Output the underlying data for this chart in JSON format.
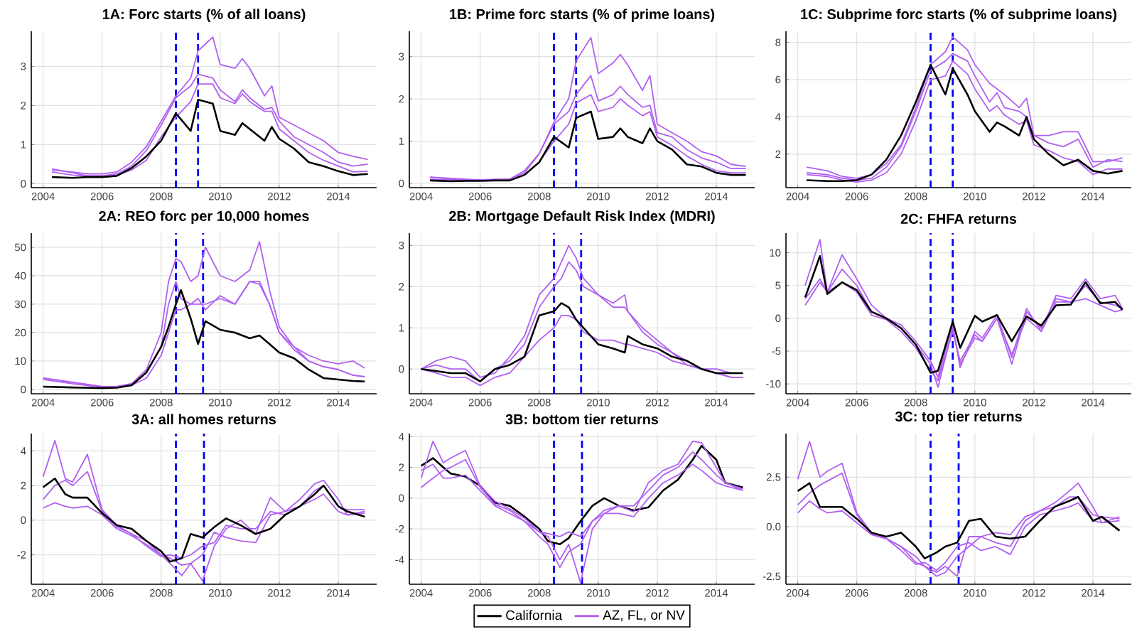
{
  "chart_data": [
    {
      "type": "line",
      "title": "1A: Forc starts (% of all loans)",
      "grid": true,
      "xlim": [
        2003.6,
        2015.3
      ],
      "ylim": [
        -0.1,
        3.9
      ],
      "xticks": [
        2004,
        2006,
        2008,
        2010,
        2012,
        2014
      ],
      "yticks": [
        0,
        1,
        2,
        3
      ],
      "ref_lines": [
        {
          "axis": "x",
          "value": 2008.5,
          "color": "#0000ff",
          "line_style": "dashed"
        },
        {
          "axis": "x",
          "value": 2009.25,
          "color": "#0000ff",
          "line_style": "dashed"
        }
      ],
      "x": [
        2004.3,
        2005,
        2005.5,
        2006,
        2006.5,
        2007,
        2007.5,
        2008,
        2008.5,
        2009,
        2009.25,
        2009.75,
        2010,
        2010.5,
        2010.75,
        2011,
        2011.5,
        2011.75,
        2012,
        2012.5,
        2013,
        2013.5,
        2014,
        2014.5,
        2015
      ],
      "series": [
        {
          "color": "#000000",
          "values": [
            0.17,
            0.15,
            0.17,
            0.17,
            0.2,
            0.4,
            0.7,
            1.1,
            1.8,
            1.35,
            2.15,
            2.05,
            1.35,
            1.25,
            1.55,
            1.4,
            1.1,
            1.45,
            1.15,
            0.9,
            0.55,
            0.45,
            0.32,
            0.22,
            0.25
          ]
        },
        {
          "color": "#b060f0",
          "values": [
            0.35,
            0.3,
            0.25,
            0.25,
            0.3,
            0.55,
            0.95,
            1.6,
            2.25,
            2.7,
            3.4,
            3.75,
            3.05,
            2.95,
            3.2,
            2.95,
            2.25,
            2.5,
            1.7,
            1.5,
            1.3,
            1.1,
            0.8,
            0.7,
            0.62
          ]
        },
        {
          "color": "#b060f0",
          "values": [
            0.38,
            0.28,
            0.2,
            0.2,
            0.25,
            0.45,
            0.85,
            1.5,
            2.2,
            2.5,
            2.8,
            2.7,
            2.4,
            2.1,
            2.4,
            2.2,
            1.9,
            1.95,
            1.6,
            1.2,
            1.0,
            0.8,
            0.55,
            0.45,
            0.5
          ]
        },
        {
          "color": "#b060f0",
          "values": [
            0.3,
            0.22,
            0.2,
            0.2,
            0.22,
            0.35,
            0.6,
            1.2,
            1.7,
            2.1,
            2.55,
            2.55,
            2.2,
            2.05,
            2.3,
            2.1,
            1.85,
            1.85,
            1.4,
            1.1,
            0.8,
            0.6,
            0.45,
            0.3,
            0.32
          ]
        }
      ]
    },
    {
      "type": "line",
      "title": "1B: Prime forc starts (% of prime loans)",
      "grid": true,
      "xlim": [
        2003.6,
        2015.3
      ],
      "ylim": [
        -0.1,
        3.6
      ],
      "xticks": [
        2004,
        2006,
        2008,
        2010,
        2012,
        2014
      ],
      "yticks": [
        0,
        1,
        2,
        3
      ],
      "ref_lines": [
        {
          "axis": "x",
          "value": 2008.5,
          "color": "#0000ff",
          "line_style": "dashed"
        },
        {
          "axis": "x",
          "value": 2009.25,
          "color": "#0000ff",
          "line_style": "dashed"
        }
      ],
      "x": [
        2004.3,
        2005,
        2005.5,
        2006,
        2006.5,
        2007,
        2007.5,
        2008,
        2008.5,
        2009,
        2009.25,
        2009.75,
        2010,
        2010.5,
        2010.75,
        2011,
        2011.5,
        2011.75,
        2012,
        2012.5,
        2013,
        2013.5,
        2014,
        2014.5,
        2015
      ],
      "series": [
        {
          "color": "#000000",
          "values": [
            0.07,
            0.05,
            0.06,
            0.06,
            0.07,
            0.07,
            0.2,
            0.5,
            1.1,
            0.85,
            1.55,
            1.7,
            1.05,
            1.1,
            1.3,
            1.1,
            0.95,
            1.3,
            1.0,
            0.8,
            0.45,
            0.4,
            0.25,
            0.2,
            0.2
          ]
        },
        {
          "color": "#b060f0",
          "values": [
            0.15,
            0.12,
            0.1,
            0.08,
            0.1,
            0.1,
            0.3,
            0.7,
            1.45,
            2.0,
            2.9,
            3.45,
            2.6,
            2.85,
            3.05,
            2.8,
            2.2,
            2.55,
            1.4,
            1.2,
            1.0,
            0.75,
            0.65,
            0.45,
            0.4
          ]
        },
        {
          "color": "#b060f0",
          "values": [
            0.15,
            0.1,
            0.08,
            0.08,
            0.08,
            0.1,
            0.25,
            0.7,
            1.4,
            1.7,
            2.1,
            2.55,
            1.95,
            2.1,
            2.3,
            2.1,
            1.8,
            1.85,
            1.2,
            1.1,
            0.8,
            0.6,
            0.5,
            0.35,
            0.35
          ]
        },
        {
          "color": "#b060f0",
          "values": [
            0.1,
            0.08,
            0.07,
            0.07,
            0.07,
            0.08,
            0.2,
            0.5,
            1.0,
            1.4,
            1.9,
            2.1,
            1.7,
            1.8,
            2.0,
            1.85,
            1.6,
            1.7,
            1.1,
            0.9,
            0.65,
            0.45,
            0.3,
            0.25,
            0.25
          ]
        }
      ]
    },
    {
      "type": "line",
      "title": "1C: Subprime forc starts (% of subprime loans)",
      "grid": true,
      "xlim": [
        2003.6,
        2015.3
      ],
      "ylim": [
        0.2,
        8.6
      ],
      "xticks": [
        2004,
        2006,
        2008,
        2010,
        2012,
        2014
      ],
      "yticks": [
        2,
        4,
        6,
        8
      ],
      "ref_lines": [
        {
          "axis": "x",
          "value": 2008.5,
          "color": "#0000ff",
          "line_style": "dashed"
        },
        {
          "axis": "x",
          "value": 2009.25,
          "color": "#0000ff",
          "line_style": "dashed"
        }
      ],
      "x": [
        2004.3,
        2005,
        2005.5,
        2006,
        2006.5,
        2007,
        2007.5,
        2008,
        2008.5,
        2009,
        2009.25,
        2009.75,
        2010,
        2010.5,
        2010.75,
        2011,
        2011.5,
        2011.75,
        2012,
        2012.5,
        2013,
        2013.5,
        2014,
        2014.5,
        2015
      ],
      "series": [
        {
          "color": "#000000",
          "values": [
            0.6,
            0.55,
            0.55,
            0.6,
            0.9,
            1.7,
            3.0,
            4.8,
            6.8,
            5.2,
            6.6,
            5.2,
            4.3,
            3.2,
            3.7,
            3.5,
            3.0,
            4.0,
            2.8,
            2.0,
            1.4,
            1.7,
            1.1,
            0.95,
            1.1
          ]
        },
        {
          "color": "#b060f0",
          "values": [
            1.3,
            1.1,
            0.8,
            0.7,
            0.9,
            1.5,
            2.5,
            4.5,
            6.8,
            7.5,
            8.3,
            7.6,
            6.8,
            5.8,
            5.5,
            5.2,
            4.5,
            5.0,
            3.0,
            3.0,
            3.2,
            3.2,
            1.6,
            1.6,
            1.8
          ]
        },
        {
          "color": "#b060f0",
          "values": [
            1.0,
            0.9,
            0.7,
            0.6,
            0.7,
            1.3,
            2.4,
            4.3,
            6.5,
            7.0,
            7.4,
            7.0,
            6.2,
            4.8,
            5.3,
            4.5,
            4.3,
            4.0,
            3.0,
            2.6,
            2.4,
            2.8,
            1.3,
            1.7,
            1.6
          ]
        },
        {
          "color": "#b060f0",
          "values": [
            0.9,
            0.8,
            0.6,
            0.5,
            0.6,
            1.0,
            2.0,
            3.8,
            6.0,
            6.2,
            7.0,
            6.3,
            5.5,
            4.3,
            4.6,
            4.1,
            3.6,
            3.8,
            2.5,
            2.2,
            1.8,
            1.6,
            0.9,
            1.2,
            1.2
          ]
        }
      ]
    },
    {
      "type": "line",
      "title": "2A: REO forc per 10,000 homes",
      "grid": true,
      "xlim": [
        2003.6,
        2015.3
      ],
      "ylim": [
        -1.5,
        55
      ],
      "xticks": [
        2004,
        2006,
        2008,
        2010,
        2012,
        2014
      ],
      "yticks": [
        0,
        10,
        20,
        30,
        40,
        50
      ],
      "ref_lines": [
        {
          "axis": "x",
          "value": 2008.5,
          "color": "#0000ff",
          "line_style": "dashed"
        },
        {
          "axis": "x",
          "value": 2009.42,
          "color": "#0000ff",
          "line_style": "dashed"
        }
      ],
      "x": [
        2004,
        2005,
        2006,
        2006.5,
        2007,
        2007.5,
        2008,
        2008.25,
        2008.5,
        2008.67,
        2009,
        2009.25,
        2009.5,
        2010,
        2010.5,
        2011,
        2011.33,
        2011.67,
        2012,
        2012.5,
        2013,
        2013.5,
        2014,
        2014.5,
        2014.9
      ],
      "series": [
        {
          "color": "#000000",
          "values": [
            1,
            0.7,
            0.5,
            0.6,
            1.5,
            6,
            15,
            22,
            30,
            35,
            25,
            16,
            24,
            21,
            20,
            18,
            19,
            16,
            13,
            11,
            7,
            4,
            3.5,
            3,
            2.8
          ]
        },
        {
          "color": "#b060f0",
          "values": [
            4,
            2.5,
            1,
            1,
            2,
            7,
            20,
            38,
            46,
            45,
            38,
            40,
            50,
            40,
            38,
            42,
            52,
            35,
            22,
            15,
            12,
            10,
            9,
            10,
            7.5
          ]
        },
        {
          "color": "#b060f0",
          "values": [
            4,
            2.5,
            1,
            1,
            2,
            6,
            15,
            30,
            38,
            32,
            30,
            32,
            28,
            33,
            30,
            38,
            38,
            30,
            20,
            15,
            10,
            8,
            7,
            5,
            4.5
          ]
        },
        {
          "color": "#b060f0",
          "values": [
            3.5,
            2,
            0.8,
            0.8,
            1.5,
            4,
            12,
            20,
            28,
            28,
            30,
            30,
            30,
            32,
            30,
            38,
            37,
            30,
            20,
            14,
            10,
            8,
            7,
            5,
            4.5
          ]
        }
      ]
    },
    {
      "type": "line",
      "title": "2B: Mortgage Default Risk Index (MDRI)",
      "grid": true,
      "xlim": [
        2003.6,
        2015.3
      ],
      "ylim": [
        -0.6,
        3.3
      ],
      "xticks": [
        2004,
        2006,
        2008,
        2010,
        2012,
        2014
      ],
      "yticks": [
        0,
        1,
        2,
        3
      ],
      "ref_lines": [
        {
          "axis": "x",
          "value": 2008.5,
          "color": "#0000ff",
          "line_style": "dashed"
        },
        {
          "axis": "x",
          "value": 2009.42,
          "color": "#0000ff",
          "line_style": "dashed"
        }
      ],
      "x": [
        2004,
        2004.5,
        2005,
        2005.5,
        2006,
        2006.5,
        2007,
        2007.5,
        2008,
        2008.5,
        2008.75,
        2009,
        2009.25,
        2009.5,
        2010,
        2010.5,
        2010.9,
        2011,
        2011.5,
        2012,
        2012.5,
        2013,
        2013.5,
        2014,
        2014.5,
        2014.9
      ],
      "series": [
        {
          "color": "#000000",
          "values": [
            0,
            -0.05,
            -0.1,
            -0.1,
            -0.3,
            0,
            0.1,
            0.3,
            1.3,
            1.4,
            1.6,
            1.5,
            1.2,
            1.0,
            0.6,
            0.5,
            0.4,
            0.8,
            0.6,
            0.5,
            0.3,
            0.2,
            0,
            -0.1,
            -0.1,
            -0.1
          ]
        },
        {
          "color": "#b060f0",
          "values": [
            0,
            0.2,
            0.3,
            0.2,
            -0.2,
            -0.1,
            0.3,
            0.8,
            1.8,
            2.2,
            2.6,
            3.0,
            2.7,
            2.2,
            1.8,
            1.6,
            1.8,
            1.4,
            0.9,
            0.6,
            0.4,
            0.2,
            0,
            -0.1,
            -0.2,
            -0.2
          ]
        },
        {
          "color": "#b060f0",
          "values": [
            0,
            0.1,
            0.0,
            0.0,
            -0.3,
            0,
            0.2,
            0.6,
            1.5,
            2.0,
            2.2,
            2.6,
            2.4,
            2.0,
            1.8,
            1.5,
            1.5,
            1.4,
            1.0,
            0.7,
            0.4,
            0.1,
            0,
            -0.1,
            -0.2,
            -0.2
          ]
        },
        {
          "color": "#b060f0",
          "values": [
            0,
            -0.1,
            -0.2,
            -0.2,
            -0.4,
            -0.2,
            -0.1,
            0.3,
            0.7,
            1.0,
            1.3,
            1.3,
            1.2,
            0.9,
            0.7,
            0.7,
            0.6,
            0.6,
            0.5,
            0.4,
            0.2,
            0.1,
            0,
            0,
            -0.1,
            -0.1
          ]
        }
      ]
    },
    {
      "type": "line",
      "title": "2C: FHFA returns",
      "grid": true,
      "xlim": [
        2003.6,
        2015.3
      ],
      "ylim": [
        -11.5,
        13
      ],
      "xticks": [
        2004,
        2006,
        2008,
        2010,
        2012,
        2014
      ],
      "yticks": [
        -10,
        -5,
        0,
        5,
        10
      ],
      "ref_lines": [
        {
          "axis": "x",
          "value": 2008.5,
          "color": "#0000ff",
          "line_style": "dashed"
        },
        {
          "axis": "x",
          "value": 2009.25,
          "color": "#0000ff",
          "line_style": "dashed"
        }
      ],
      "x": [
        2004.25,
        2004.75,
        2005,
        2005.5,
        2006,
        2006.5,
        2007,
        2007.5,
        2008,
        2008.5,
        2008.75,
        2009.25,
        2009.5,
        2010,
        2010.25,
        2010.75,
        2011.25,
        2011.75,
        2012.25,
        2012.75,
        2013.25,
        2013.75,
        2014.25,
        2014.75,
        2015
      ],
      "series": [
        {
          "color": "#000000",
          "values": [
            3.2,
            9.5,
            3.7,
            5.5,
            4.3,
            1.0,
            0,
            -1.5,
            -4,
            -8.3,
            -8,
            -0.5,
            -4.5,
            0.4,
            -0.5,
            0.5,
            -3.5,
            0.3,
            -1.1,
            2,
            2.1,
            5.5,
            2.3,
            2.5,
            1.3
          ]
        },
        {
          "color": "#b060f0",
          "values": [
            5,
            12,
            4,
            9.7,
            6,
            2,
            0,
            -1,
            -3.5,
            -6.5,
            -9,
            -1,
            -7.5,
            -2,
            -3,
            0.5,
            -6,
            1.5,
            -2,
            3.5,
            3,
            6,
            3,
            3.5,
            1.5
          ]
        },
        {
          "color": "#b060f0",
          "values": [
            3,
            6,
            4,
            7.5,
            5,
            1,
            0,
            -1.5,
            -4,
            -7,
            -10.5,
            -1.5,
            -7,
            -3,
            -3.5,
            0,
            -7,
            1,
            -1.5,
            3,
            2.5,
            5,
            2.5,
            2,
            1.5
          ]
        },
        {
          "color": "#b060f0",
          "values": [
            2,
            5.5,
            4,
            5.5,
            4,
            0.5,
            -0.2,
            -2,
            -4.5,
            -8,
            -9.5,
            -2,
            -6.5,
            -2.5,
            -3.5,
            0,
            -5.5,
            0,
            -2,
            2.5,
            2.5,
            3,
            2,
            1,
            1.3
          ]
        }
      ]
    },
    {
      "type": "line",
      "title": "3A: all homes returns",
      "grid": true,
      "xlim": [
        2003.6,
        2015.3
      ],
      "ylim": [
        -3.7,
        5
      ],
      "xticks": [
        2004,
        2006,
        2008,
        2010,
        2012,
        2014
      ],
      "yticks": [
        -2,
        0,
        2,
        4
      ],
      "ref_lines": [
        {
          "axis": "x",
          "value": 2008.5,
          "color": "#0000ff",
          "line_style": "dashed"
        },
        {
          "axis": "x",
          "value": 2009.45,
          "color": "#0000ff",
          "line_style": "dashed"
        }
      ],
      "x": [
        2004,
        2004.4,
        2004.75,
        2005,
        2005.5,
        2006,
        2006.5,
        2007,
        2007.5,
        2008,
        2008.3,
        2008.7,
        2009,
        2009.4,
        2009.8,
        2010.2,
        2010.7,
        2011.2,
        2011.7,
        2012.2,
        2012.7,
        2013.2,
        2013.5,
        2014,
        2014.3,
        2014.9
      ],
      "series": [
        {
          "color": "#000000",
          "values": [
            1.9,
            2.4,
            1.5,
            1.3,
            1.3,
            0.4,
            -0.3,
            -0.5,
            -1.2,
            -1.8,
            -2.4,
            -2.2,
            -0.8,
            -1.0,
            -0.4,
            0.1,
            -0.3,
            -0.8,
            -0.5,
            0.3,
            0.8,
            1.5,
            2.0,
            0.8,
            0.5,
            0.2
          ]
        },
        {
          "color": "#b060f0",
          "values": [
            2.5,
            4.6,
            2.4,
            2.2,
            3.8,
            0.6,
            -0.3,
            -0.8,
            -1.2,
            -2.0,
            -2.2,
            -2.6,
            -2.5,
            -3.5,
            -1.5,
            -0.5,
            0.0,
            -0.8,
            1.3,
            0.5,
            1.2,
            2.1,
            2.3,
            1.2,
            0.3,
            0.5
          ]
        },
        {
          "color": "#b060f0",
          "values": [
            1.2,
            2.0,
            2.3,
            2.0,
            2.8,
            0.5,
            -0.4,
            -0.8,
            -1.5,
            -2.1,
            -2.0,
            -2.2,
            -2.0,
            -1.5,
            -1.3,
            -0.3,
            -0.5,
            -0.5,
            0.5,
            0.3,
            0.8,
            1.7,
            2.0,
            0.8,
            0.6,
            0.6
          ]
        },
        {
          "color": "#b060f0",
          "values": [
            0.7,
            1.0,
            0.8,
            0.7,
            0.8,
            0.3,
            -0.5,
            -0.9,
            -1.4,
            -2.0,
            -2.5,
            -3.2,
            -2.5,
            -2.0,
            -0.7,
            -1.0,
            -1.2,
            -1.3,
            0.3,
            0.5,
            0.8,
            1.2,
            1.5,
            0.5,
            0.3,
            0.4
          ]
        }
      ]
    },
    {
      "type": "line",
      "title": "3B: bottom tier returns",
      "grid": true,
      "legend": "bottom",
      "xlim": [
        2003.6,
        2015.3
      ],
      "ylim": [
        -5.6,
        4.2
      ],
      "xticks": [
        2004,
        2006,
        2008,
        2010,
        2012,
        2014
      ],
      "yticks": [
        -4,
        -2,
        0,
        2,
        4
      ],
      "ref_lines": [
        {
          "axis": "x",
          "value": 2008.5,
          "color": "#0000ff",
          "line_style": "dashed"
        },
        {
          "axis": "x",
          "value": 2009.45,
          "color": "#0000ff",
          "line_style": "dashed"
        }
      ],
      "x": [
        2004,
        2004.4,
        2004.75,
        2005,
        2005.5,
        2006,
        2006.5,
        2007,
        2007.5,
        2008,
        2008.3,
        2008.7,
        2009,
        2009.4,
        2009.8,
        2010.2,
        2010.7,
        2011.2,
        2011.7,
        2012.2,
        2012.7,
        2013.2,
        2013.5,
        2014,
        2014.3,
        2014.9
      ],
      "series": [
        {
          "name": "California",
          "color": "#000000",
          "values": [
            2.1,
            2.6,
            2.0,
            1.6,
            1.4,
            0.8,
            -0.3,
            -0.5,
            -1.2,
            -2.0,
            -2.8,
            -3.0,
            -2.6,
            -1.5,
            -0.5,
            0.0,
            -0.5,
            -0.8,
            -0.6,
            0.5,
            1.2,
            2.5,
            3.4,
            2.5,
            1.0,
            0.7
          ]
        },
        {
          "name": "AZ, FL, or NV",
          "color": "#b060f0",
          "values": [
            1.3,
            3.7,
            2.3,
            2.6,
            3.1,
            0.8,
            -0.2,
            -0.7,
            -1.3,
            -2.2,
            -2.5,
            -4.0,
            -3.0,
            -5.5,
            -2.0,
            -1.0,
            -0.5,
            -0.9,
            1.0,
            1.8,
            2.2,
            3.7,
            3.6,
            2.0,
            1.0,
            0.6
          ]
        },
        {
          "color": "#b060f0",
          "values": [
            0.7,
            1.3,
            1.8,
            2.0,
            2.5,
            0.7,
            -0.4,
            -0.8,
            -1.5,
            -2.2,
            -2.3,
            -2.5,
            -2.2,
            -2.5,
            -1.5,
            -0.8,
            -0.5,
            -0.5,
            0.5,
            1.5,
            2.0,
            3.0,
            2.5,
            1.5,
            1.0,
            0.5
          ]
        },
        {
          "color": "#b060f0",
          "values": [
            1.8,
            2.2,
            1.3,
            1.3,
            1.5,
            0.5,
            -0.5,
            -1.0,
            -1.5,
            -2.5,
            -3.0,
            -4.5,
            -3.5,
            -3.0,
            -1.5,
            -1.0,
            -1.0,
            -1.2,
            0.0,
            1.0,
            1.5,
            2.2,
            1.8,
            1.0,
            0.8,
            0.5
          ]
        }
      ]
    },
    {
      "type": "line",
      "title": "3C: top tier returns",
      "grid": true,
      "xlim": [
        2003.6,
        2015.3
      ],
      "ylim": [
        -2.9,
        4.7
      ],
      "xticks": [
        2004,
        2006,
        2008,
        2010,
        2012,
        2014
      ],
      "yticks": [
        -2.5,
        {
          "value": 0,
          "label": "0.0"
        },
        2.5
      ],
      "ref_lines": [
        {
          "axis": "x",
          "value": 2008.5,
          "color": "#0000ff",
          "line_style": "dashed"
        },
        {
          "axis": "x",
          "value": 2009.45,
          "color": "#0000ff",
          "line_style": "dashed"
        }
      ],
      "x": [
        2004,
        2004.4,
        2004.75,
        2005,
        2005.5,
        2006,
        2006.5,
        2007,
        2007.5,
        2008,
        2008.3,
        2008.7,
        2009,
        2009.4,
        2009.8,
        2010.2,
        2010.7,
        2011.2,
        2011.7,
        2012.2,
        2012.7,
        2013.2,
        2013.5,
        2014,
        2014.3,
        2014.9
      ],
      "series": [
        {
          "color": "#000000",
          "values": [
            1.8,
            2.2,
            1.0,
            1.0,
            1.0,
            0.4,
            -0.3,
            -0.5,
            -0.3,
            -1.0,
            -1.6,
            -1.3,
            -1.0,
            -0.8,
            0.3,
            0.4,
            -0.5,
            -0.6,
            -0.5,
            0.3,
            1.0,
            1.3,
            1.5,
            0.3,
            0.5,
            -0.2
          ]
        },
        {
          "color": "#b060f0",
          "values": [
            2.4,
            4.3,
            2.5,
            2.8,
            3.2,
            0.7,
            -0.3,
            -0.6,
            -1.0,
            -1.5,
            -2.0,
            -2.3,
            -2.0,
            -2.5,
            -0.5,
            -0.5,
            -0.3,
            -0.4,
            0.5,
            0.8,
            1.2,
            1.8,
            2.2,
            1.0,
            0.2,
            0.5
          ]
        },
        {
          "color": "#b060f0",
          "values": [
            1.1,
            1.7,
            2.1,
            2.3,
            2.7,
            0.6,
            -0.4,
            -0.6,
            -1.0,
            -1.8,
            -2.0,
            -2.5,
            -2.3,
            -1.5,
            -1.0,
            -0.5,
            -0.8,
            -1.0,
            0.3,
            0.8,
            1.0,
            1.5,
            1.5,
            0.6,
            0.5,
            0.4
          ]
        },
        {
          "color": "#b060f0",
          "values": [
            0.7,
            1.3,
            0.9,
            0.7,
            0.8,
            0.2,
            -0.4,
            -0.6,
            -1.2,
            -1.9,
            -1.8,
            -2.2,
            -1.8,
            -1.0,
            -0.8,
            -1.2,
            -1.0,
            -1.4,
            0.0,
            0.6,
            0.8,
            1.0,
            1.2,
            0.3,
            0.2,
            0.3
          ]
        }
      ]
    }
  ]
}
